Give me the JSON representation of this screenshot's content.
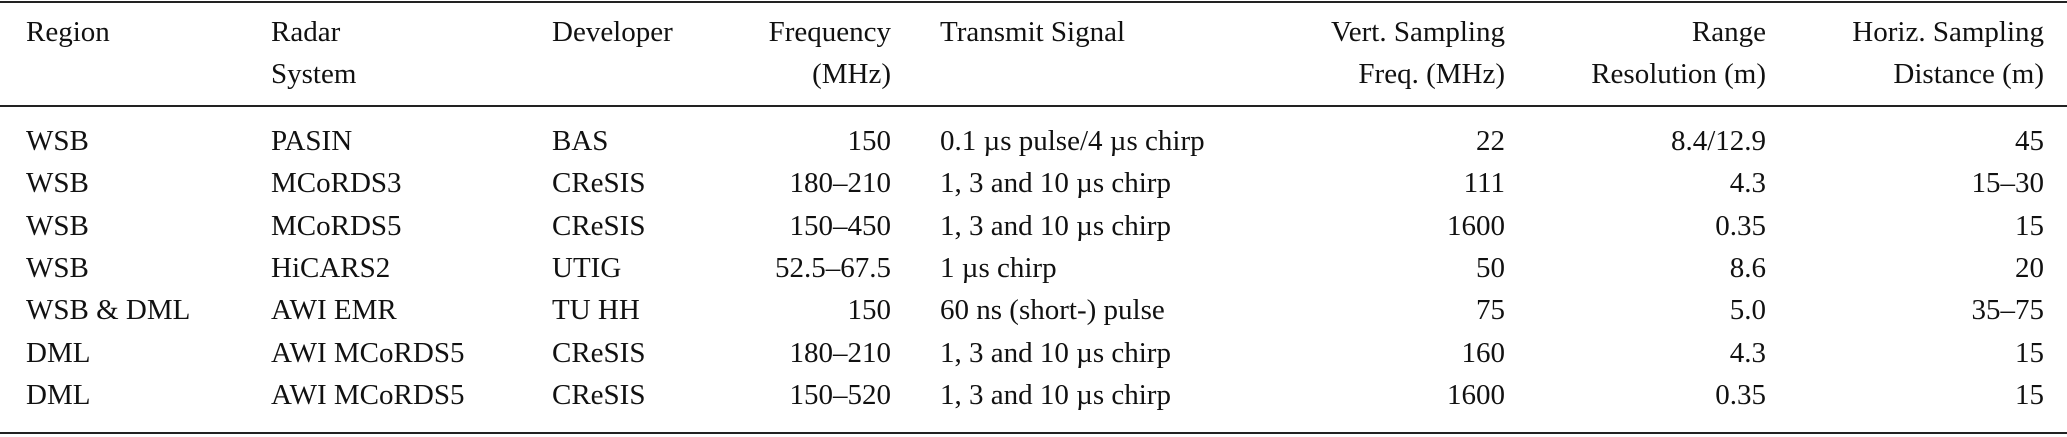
{
  "table": {
    "header": [
      [
        "Region"
      ],
      [
        "Radar",
        "System"
      ],
      [
        "Developer"
      ],
      [
        "Frequency",
        "(MHz)"
      ],
      [
        "Transmit Signal"
      ],
      [
        "Vert. Sampling",
        "Freq. (MHz)"
      ],
      [
        "Range",
        "Resolution (m)"
      ],
      [
        "Horiz. Sampling",
        "Distance (m)"
      ]
    ],
    "rows": [
      [
        "WSB",
        "PASIN",
        "BAS",
        "150",
        "0.1 µs pulse/4 µs chirp",
        "22",
        "8.4/12.9",
        "45"
      ],
      [
        "WSB",
        "MCoRDS3",
        "CReSIS",
        "180–210",
        "1, 3 and 10 µs chirp",
        "111",
        "4.3",
        "15–30"
      ],
      [
        "WSB",
        "MCoRDS5",
        "CReSIS",
        "150–450",
        "1, 3 and 10 µs chirp",
        "1600",
        "0.35",
        "15"
      ],
      [
        "WSB",
        "HiCARS2",
        "UTIG",
        "52.5–67.5",
        "1 µs chirp",
        "50",
        "8.6",
        "20"
      ],
      [
        "WSB & DML",
        "AWI EMR",
        "TU HH",
        "150",
        "60 ns (short-) pulse",
        "75",
        "5.0",
        "35–75"
      ],
      [
        "DML",
        "AWI MCoRDS5",
        "CReSIS",
        "180–210",
        "1, 3 and 10 µs chirp",
        "160",
        "4.3",
        "15"
      ],
      [
        "DML",
        "AWI MCoRDS5",
        "CReSIS",
        "150–520",
        "1, 3 and 10 µs chirp",
        "1600",
        "0.35",
        "15"
      ]
    ]
  }
}
